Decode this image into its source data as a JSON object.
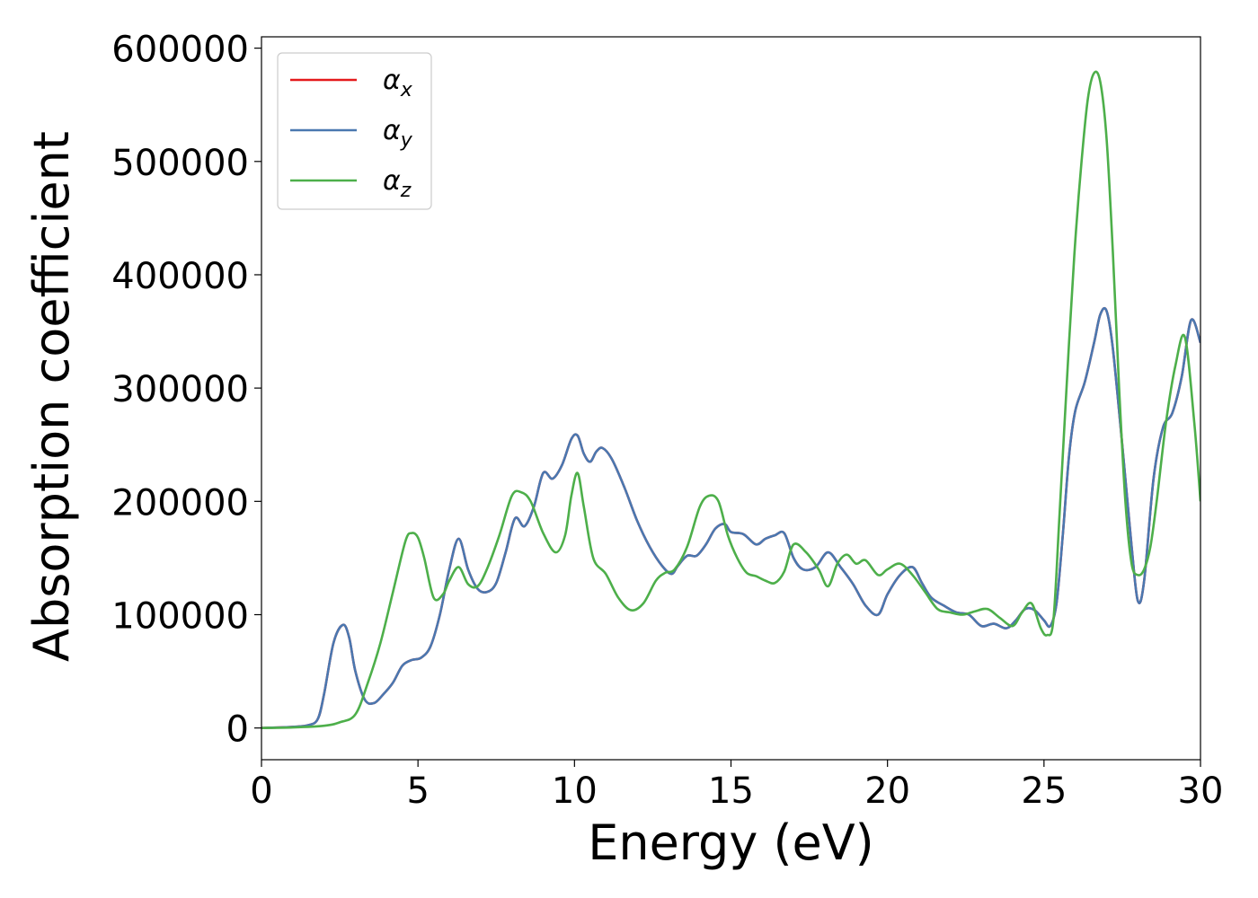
{
  "chart_data": {
    "type": "line",
    "xlabel": "Energy (eV)",
    "ylabel": "Absorption coefficient",
    "xlim": [
      0,
      30
    ],
    "ylim": [
      -28000,
      610000
    ],
    "xticks": [
      0,
      5,
      10,
      15,
      20,
      25,
      30
    ],
    "yticks": [
      0,
      100000,
      200000,
      300000,
      400000,
      500000,
      600000
    ],
    "grid": false,
    "legend_position": "top-left",
    "series": [
      {
        "name": "α",
        "subscript": "x",
        "color": "#e41a1c",
        "x": [
          0,
          1,
          1.5,
          1.8,
          2.0,
          2.3,
          2.6,
          2.8,
          3.0,
          3.3,
          3.6,
          3.9,
          4.2,
          4.5,
          4.8,
          5.1,
          5.4,
          5.7,
          6.0,
          6.3,
          6.6,
          6.9,
          7.2,
          7.5,
          7.8,
          8.1,
          8.4,
          8.7,
          9.0,
          9.3,
          9.6,
          9.9,
          10.1,
          10.3,
          10.5,
          10.7,
          10.9,
          11.2,
          11.6,
          12.0,
          12.4,
          12.8,
          13.1,
          13.3,
          13.6,
          13.9,
          14.2,
          14.5,
          14.8,
          15.0,
          15.4,
          15.8,
          16.1,
          16.4,
          16.7,
          17.0,
          17.3,
          17.7,
          18.1,
          18.5,
          18.9,
          19.3,
          19.7,
          20.0,
          20.4,
          20.8,
          21.1,
          21.4,
          21.8,
          22.2,
          22.6,
          23.0,
          23.4,
          23.8,
          24.1,
          24.4,
          24.7,
          25.0,
          25.2,
          25.4,
          25.6,
          25.8,
          26.0,
          26.3,
          26.6,
          26.8,
          27.0,
          27.2,
          27.5,
          27.8,
          28.0,
          28.2,
          28.5,
          28.8,
          29.1,
          29.4,
          29.7,
          30.0
        ],
        "y": [
          0,
          1000,
          2500,
          8000,
          30000,
          75000,
          91000,
          80000,
          50000,
          25000,
          22000,
          30000,
          40000,
          55000,
          60000,
          62000,
          72000,
          100000,
          140000,
          167000,
          140000,
          123000,
          120000,
          128000,
          155000,
          185000,
          178000,
          195000,
          225000,
          220000,
          232000,
          255000,
          258000,
          242000,
          235000,
          244000,
          247000,
          237000,
          212000,
          183000,
          160000,
          143000,
          136000,
          143000,
          152000,
          152000,
          162000,
          176000,
          180000,
          173000,
          171000,
          162000,
          167000,
          170000,
          172000,
          150000,
          140000,
          142000,
          155000,
          142000,
          127000,
          108000,
          100000,
          118000,
          135000,
          142000,
          128000,
          115000,
          108000,
          102000,
          100000,
          90000,
          92000,
          88000,
          95000,
          105000,
          104000,
          95000,
          90000,
          110000,
          170000,
          240000,
          280000,
          305000,
          340000,
          365000,
          368000,
          335000,
          250000,
          160000,
          112000,
          130000,
          220000,
          265000,
          278000,
          310000,
          360000,
          340000
        ]
      },
      {
        "name": "α",
        "subscript": "y",
        "color": "#4a78b0",
        "x": [
          0,
          1,
          1.5,
          1.8,
          2.0,
          2.3,
          2.6,
          2.8,
          3.0,
          3.3,
          3.6,
          3.9,
          4.2,
          4.5,
          4.8,
          5.1,
          5.4,
          5.7,
          6.0,
          6.3,
          6.6,
          6.9,
          7.2,
          7.5,
          7.8,
          8.1,
          8.4,
          8.7,
          9.0,
          9.3,
          9.6,
          9.9,
          10.1,
          10.3,
          10.5,
          10.7,
          10.9,
          11.2,
          11.6,
          12.0,
          12.4,
          12.8,
          13.1,
          13.3,
          13.6,
          13.9,
          14.2,
          14.5,
          14.8,
          15.0,
          15.4,
          15.8,
          16.1,
          16.4,
          16.7,
          17.0,
          17.3,
          17.7,
          18.1,
          18.5,
          18.9,
          19.3,
          19.7,
          20.0,
          20.4,
          20.8,
          21.1,
          21.4,
          21.8,
          22.2,
          22.6,
          23.0,
          23.4,
          23.8,
          24.1,
          24.4,
          24.7,
          25.0,
          25.2,
          25.4,
          25.6,
          25.8,
          26.0,
          26.3,
          26.6,
          26.8,
          27.0,
          27.2,
          27.5,
          27.8,
          28.0,
          28.2,
          28.5,
          28.8,
          29.1,
          29.4,
          29.7,
          30.0
        ],
        "y": [
          0,
          1000,
          2500,
          8000,
          30000,
          75000,
          91000,
          80000,
          50000,
          25000,
          22000,
          30000,
          40000,
          55000,
          60000,
          62000,
          72000,
          100000,
          140000,
          167000,
          140000,
          123000,
          120000,
          128000,
          155000,
          185000,
          178000,
          195000,
          225000,
          220000,
          232000,
          255000,
          258000,
          242000,
          235000,
          244000,
          247000,
          237000,
          212000,
          183000,
          160000,
          143000,
          136000,
          143000,
          152000,
          152000,
          162000,
          176000,
          180000,
          173000,
          171000,
          162000,
          167000,
          170000,
          172000,
          150000,
          140000,
          142000,
          155000,
          142000,
          127000,
          108000,
          100000,
          118000,
          135000,
          142000,
          128000,
          115000,
          108000,
          102000,
          100000,
          90000,
          92000,
          88000,
          95000,
          105000,
          104000,
          95000,
          90000,
          110000,
          170000,
          240000,
          280000,
          305000,
          340000,
          365000,
          368000,
          335000,
          250000,
          160000,
          112000,
          130000,
          220000,
          265000,
          278000,
          310000,
          360000,
          340000
        ]
      },
      {
        "name": "α",
        "subscript": "z",
        "color": "#4daf4a",
        "x": [
          0,
          1,
          2,
          2.5,
          3.0,
          3.4,
          3.8,
          4.2,
          4.6,
          4.8,
          5.0,
          5.2,
          5.5,
          5.8,
          6.0,
          6.3,
          6.6,
          6.9,
          7.2,
          7.6,
          8.0,
          8.3,
          8.6,
          9.0,
          9.4,
          9.7,
          9.9,
          10.1,
          10.3,
          10.6,
          11.0,
          11.4,
          11.8,
          12.2,
          12.6,
          12.9,
          13.2,
          13.6,
          14.0,
          14.3,
          14.6,
          14.9,
          15.2,
          15.5,
          15.8,
          16.1,
          16.4,
          16.7,
          17.0,
          17.4,
          17.8,
          18.1,
          18.4,
          18.7,
          19.0,
          19.3,
          19.7,
          20.0,
          20.4,
          20.8,
          21.2,
          21.6,
          22.0,
          22.4,
          22.8,
          23.2,
          23.6,
          24.0,
          24.3,
          24.6,
          24.9,
          25.1,
          25.3,
          25.5,
          25.8,
          26.0,
          26.2,
          26.4,
          26.6,
          26.8,
          27.0,
          27.2,
          27.4,
          27.6,
          27.8,
          28.0,
          28.2,
          28.4,
          28.6,
          28.9,
          29.2,
          29.5,
          29.8,
          30.0
        ],
        "y": [
          0,
          500,
          2000,
          5000,
          12000,
          40000,
          75000,
          120000,
          165000,
          172000,
          168000,
          150000,
          115000,
          118000,
          130000,
          142000,
          127000,
          125000,
          140000,
          170000,
          205000,
          208000,
          200000,
          172000,
          155000,
          170000,
          205000,
          225000,
          195000,
          150000,
          136000,
          115000,
          104000,
          110000,
          130000,
          137000,
          140000,
          160000,
          195000,
          205000,
          200000,
          170000,
          150000,
          137000,
          134000,
          130000,
          128000,
          138000,
          162000,
          155000,
          140000,
          125000,
          145000,
          153000,
          145000,
          148000,
          135000,
          140000,
          145000,
          135000,
          120000,
          105000,
          102000,
          100000,
          103000,
          105000,
          97000,
          90000,
          102000,
          110000,
          88000,
          82000,
          95000,
          190000,
          340000,
          430000,
          500000,
          555000,
          578000,
          570000,
          520000,
          420000,
          300000,
          200000,
          145000,
          135000,
          140000,
          160000,
          200000,
          270000,
          320000,
          345000,
          270000,
          200000
        ]
      }
    ]
  }
}
